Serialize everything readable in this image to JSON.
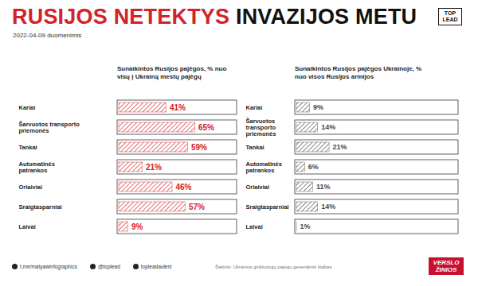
{
  "title": "RUSIJOS NETEKTYS INVAZIJOS METU",
  "subtitle": "2022-04-09 duomenimis",
  "logo": "TOP LEAD",
  "chart_data": [
    {
      "type": "bar",
      "orientation": "horizontal",
      "title": "Sunaikintos Rusijos pajėgos, % nuo visų į Ukrainą mestų pajėgų",
      "categories": [
        "Kariai",
        "Šarvuotos transporto priemonės",
        "Tankai",
        "Automatinės patrankos",
        "Orlaiviai",
        "Sraigtasparniai",
        "Laivai"
      ],
      "values": [
        41,
        65,
        59,
        21,
        46,
        57,
        9
      ],
      "value_labels": [
        "41%",
        "65%",
        "59%",
        "21%",
        "46%",
        "57%",
        "9%"
      ],
      "color": "#d3222a",
      "xlim": [
        0,
        100
      ],
      "xticks": [],
      "grid": false,
      "data_labels": true,
      "tick_labels": "y"
    },
    {
      "type": "bar",
      "orientation": "horizontal",
      "title": "Sunaikintos Rusijos pajėgos Ukrainoje, % nuo visos Rusijos armijos",
      "categories": [
        "Kariai",
        "Šarvuotos transporto priemonės",
        "Tankai",
        "Automatinės patrankos",
        "Orlaiviai",
        "Sraigtasparniai",
        "Laivai"
      ],
      "values": [
        9,
        14,
        21,
        6,
        11,
        14,
        1
      ],
      "value_labels": [
        "9%",
        "14%",
        "21%",
        "6%",
        "11%",
        "14%",
        "1%"
      ],
      "color": "#4a4a4a",
      "xlim": [
        0,
        100
      ],
      "xticks": [],
      "grid": false,
      "data_labels": true,
      "tick_labels": "y"
    }
  ],
  "footer": {
    "links": [
      "t.me/matyawinfographics",
      "@toplead",
      "topleadauleni"
    ],
    "source": "Šaltinis: Ukrainos ginkluotųjų pajėgų generalinis štabas",
    "publisher": "VERSLO ŽINIOS"
  }
}
